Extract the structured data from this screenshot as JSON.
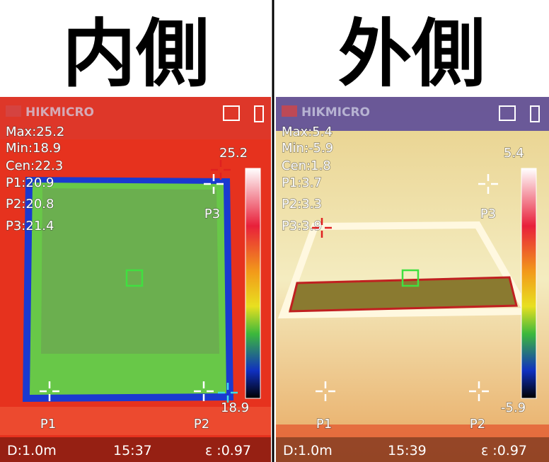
{
  "panels": [
    {
      "heading": "内側",
      "brand": "HIKMICRO",
      "readings": [
        "Max:25.2",
        "Min:18.9",
        "Cen:22.3",
        "P1:20.9",
        "P2:20.8",
        "P3:21.4"
      ],
      "scale": {
        "max": "25.2",
        "min": "18.9"
      },
      "points": [
        "P1",
        "P2",
        "P3"
      ],
      "footer": {
        "distance": "D:1.0m",
        "time": "15:37",
        "emissivity": "ε :0.97"
      }
    },
    {
      "heading": "外側",
      "brand": "HIKMICRO",
      "readings": [
        "Max:5.4",
        "Min:-5.9",
        "Cen:1.8",
        "P1:3.7",
        "P2:3.3",
        "P3:3.9"
      ],
      "scale": {
        "max": "5.4",
        "min": "-5.9"
      },
      "points": [
        "P1",
        "P2",
        "P3"
      ],
      "footer": {
        "distance": "D:1.0m",
        "time": "15:39",
        "emissivity": "ε :0.97"
      }
    }
  ]
}
